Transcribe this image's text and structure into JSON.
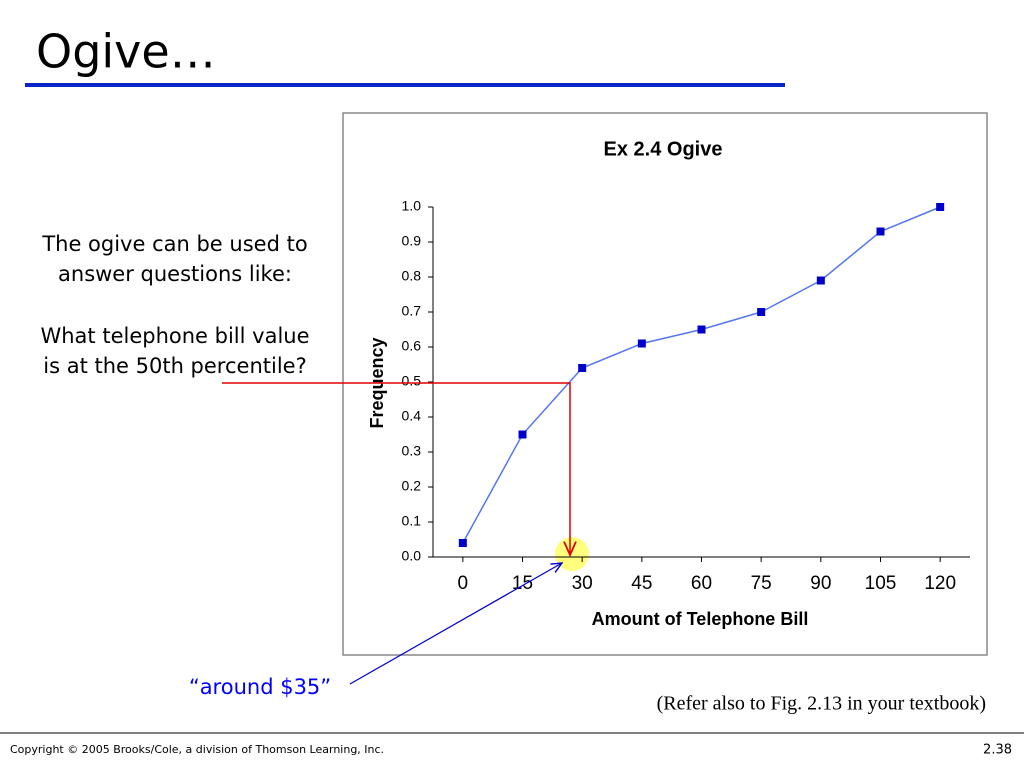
{
  "slide": {
    "title": "Ogive…",
    "body_lines": [
      "The ogive can be used to",
      "answer questions like:",
      "What telephone bill value",
      "is at the 50th percentile?"
    ],
    "annotation": "“around $35”",
    "reference": "(Refer also to Fig. 2.13 in your textbook)",
    "footer": "Copyright © 2005 Brooks/Cole, a division of Thomson Learning, Inc.",
    "page_number": "2.38"
  },
  "chart_data": {
    "type": "line",
    "title": "Ex 2.4 Ogive",
    "x_label": "Amount of Telephone Bill",
    "y_label": "Frequency",
    "x": [
      0,
      15,
      30,
      45,
      60,
      75,
      90,
      105,
      120
    ],
    "series": [
      {
        "color": "#0000cc",
        "values": [
          0.04,
          0.35,
          0.54,
          0.61,
          0.65,
          0.7,
          0.79,
          0.93,
          1.0
        ]
      }
    ],
    "xlim": [
      -7.5,
      127.5
    ],
    "xticks": [
      0,
      15,
      30,
      45,
      60,
      75,
      90,
      105,
      120
    ],
    "ylim": [
      0,
      1
    ],
    "yticks": [
      {
        "value": 0,
        "label": "0.0"
      },
      0.1,
      0.2,
      0.3,
      0.4,
      0.5,
      0.6,
      0.7,
      0.8,
      0.9,
      {
        "value": 1,
        "label": "1.0"
      }
    ]
  }
}
